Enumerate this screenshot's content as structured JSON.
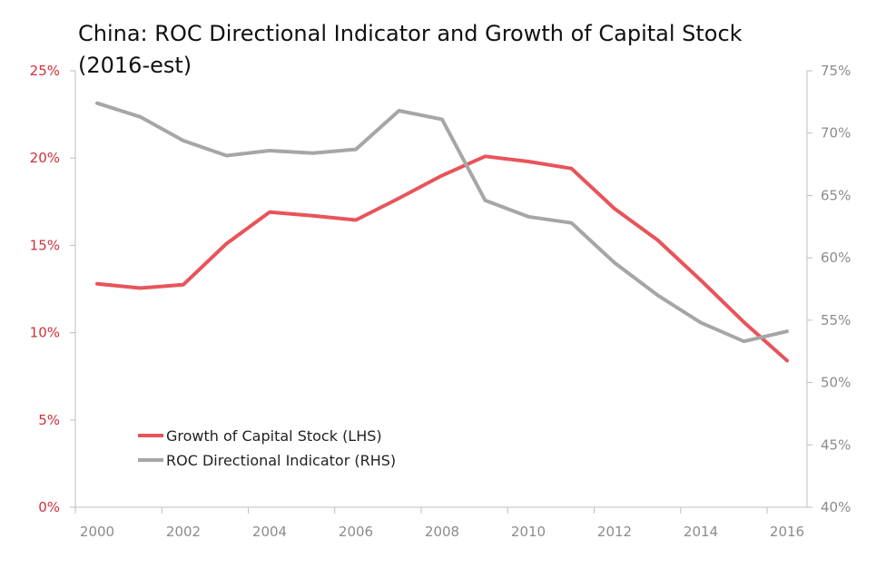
{
  "chart_data": {
    "type": "line",
    "title_line1": "China:  ROC Directional Indicator and Growth of Capital Stock",
    "title_line2": "(2016-est)",
    "x": [
      2000,
      2001,
      2002,
      2003,
      2004,
      2005,
      2006,
      2007,
      2008,
      2009,
      2010,
      2011,
      2012,
      2013,
      2014,
      2015,
      2016
    ],
    "x_ticks": [
      "2000",
      "2002",
      "2004",
      "2006",
      "2008",
      "2010",
      "2012",
      "2014",
      "2016"
    ],
    "y_left_ticks": [
      "0%",
      "5%",
      "10%",
      "15%",
      "20%",
      "25%"
    ],
    "y_right_ticks": [
      "40%",
      "45%",
      "50%",
      "55%",
      "60%",
      "65%",
      "70%",
      "75%"
    ],
    "ylim_left": [
      0,
      25
    ],
    "ylim_right": [
      40,
      75
    ],
    "series": [
      {
        "name": "Growth of Capital Stock (LHS)",
        "axis": "left",
        "color": "#e8545a",
        "values": [
          12.8,
          12.55,
          12.75,
          15.1,
          16.9,
          16.7,
          16.45,
          17.7,
          19.0,
          20.1,
          19.8,
          19.4,
          17.1,
          15.3,
          13.0,
          10.6,
          8.4
        ]
      },
      {
        "name": "ROC Directional Indicator (RHS)",
        "axis": "right",
        "color": "#a6a6a6",
        "values": [
          72.4,
          71.3,
          69.4,
          68.2,
          68.6,
          68.4,
          68.7,
          71.8,
          71.1,
          64.6,
          63.3,
          62.8,
          59.6,
          57.0,
          54.8,
          53.3,
          54.1
        ]
      }
    ],
    "colors": {
      "left_axis": "#d0303a",
      "right_axis": "#8c8c8c",
      "x_axis": "#8c8c8c"
    },
    "grid": false,
    "legend_position": "bottom-left"
  }
}
